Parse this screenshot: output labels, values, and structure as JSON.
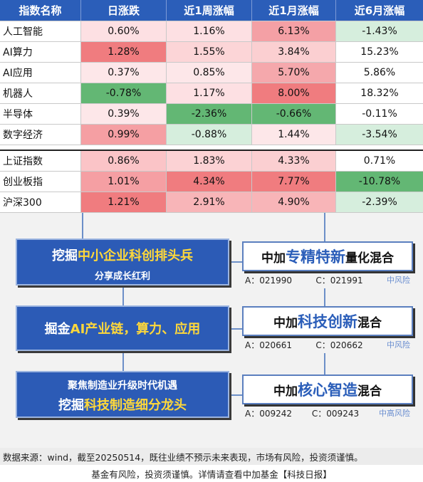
{
  "table": {
    "headers": [
      "指数名称",
      "日涨跌",
      "近1周涨幅",
      "近1月涨幅",
      "近6月涨幅"
    ],
    "rows": [
      {
        "name": "人工智能",
        "values": [
          "0.60%",
          "1.16%",
          "6.13%",
          "-1.43%"
        ],
        "colors": [
          "#fde0e3",
          "#fde0e3",
          "#f4a0a5",
          "#d6eedd"
        ]
      },
      {
        "name": "AI算力",
        "values": [
          "1.28%",
          "1.55%",
          "3.84%",
          "15.23%"
        ],
        "colors": [
          "#f07c7f",
          "#fcd5d7",
          "#fbcfd1",
          "#ffffff"
        ]
      },
      {
        "name": "AI应用",
        "values": [
          "0.37%",
          "0.85%",
          "5.70%",
          "5.86%"
        ],
        "colors": [
          "#fde7e9",
          "#fde7e9",
          "#f5a8ac",
          "#ffffff"
        ]
      },
      {
        "name": "机器人",
        "values": [
          "-0.78%",
          "1.17%",
          "8.00%",
          "18.32%"
        ],
        "colors": [
          "#63b774",
          "#fde0e3",
          "#f07c7f",
          "#ffffff"
        ]
      },
      {
        "name": "半导体",
        "values": [
          "0.39%",
          "-2.36%",
          "-0.66%",
          "-0.11%"
        ],
        "colors": [
          "#fde7e9",
          "#63b774",
          "#63b774",
          "#ffffff"
        ]
      },
      {
        "name": "数字经济",
        "values": [
          "0.99%",
          "-0.88%",
          "1.44%",
          "-3.54%"
        ],
        "colors": [
          "#f59fa3",
          "#d6eedd",
          "#fde7e9",
          "#d6eedd"
        ]
      }
    ],
    "rows2": [
      {
        "name": "上证指数",
        "values": [
          "0.86%",
          "1.83%",
          "4.33%",
          "0.71%"
        ],
        "colors": [
          "#fbc4c7",
          "#fcd2d4",
          "#fbcfd1",
          "#ffffff"
        ]
      },
      {
        "name": "创业板指",
        "values": [
          "1.01%",
          "4.34%",
          "7.77%",
          "-10.78%"
        ],
        "colors": [
          "#f59fa3",
          "#f07c7f",
          "#f07c7f",
          "#63b774"
        ]
      },
      {
        "name": "沪深300",
        "values": [
          "1.21%",
          "2.91%",
          "4.90%",
          "-2.39%"
        ],
        "colors": [
          "#f07c7f",
          "#f8b5b8",
          "#f8b5b8",
          "#d6eedd"
        ]
      }
    ]
  },
  "left_boxes": [
    {
      "pre": "挖掘",
      "hl": "中小企业科创排头兵",
      "post": "",
      "sub": "分享成长红利"
    },
    {
      "pre": "掘金",
      "hl": "AI产业链，算力、应用",
      "post": ""
    },
    {
      "line1": "聚焦制造业升级时代机遇",
      "pre": "挖掘",
      "hl": "科技制造细分龙头"
    }
  ],
  "funds": [
    {
      "p1": "中加",
      "big": "专精特新",
      "p2": "量化混合",
      "a": "A：021990",
      "c": "C：021991",
      "risk": "中风险"
    },
    {
      "p1": "中加",
      "big": "科技创新",
      "p2": "混合",
      "a": "A：020661",
      "c": "C：020662",
      "risk": "中风险"
    },
    {
      "p1": "中加",
      "big": "核心智造",
      "p2": "混合",
      "a": "A：009242",
      "c": "C：009243",
      "risk": "中高风险"
    }
  ],
  "footer": {
    "line1": "数据来源：wind，截至20250514，既往业绩不预示未来表现，市场有风险，投资须谨慎。",
    "line2": "基金有风险，投资须谨慎。详情请查看中加基金【科技日报】"
  },
  "colors": {
    "header": "#2b5eb9",
    "accent_yellow": "#ffd83a",
    "red_strong": "#f07c7f",
    "green_strong": "#63b774"
  }
}
